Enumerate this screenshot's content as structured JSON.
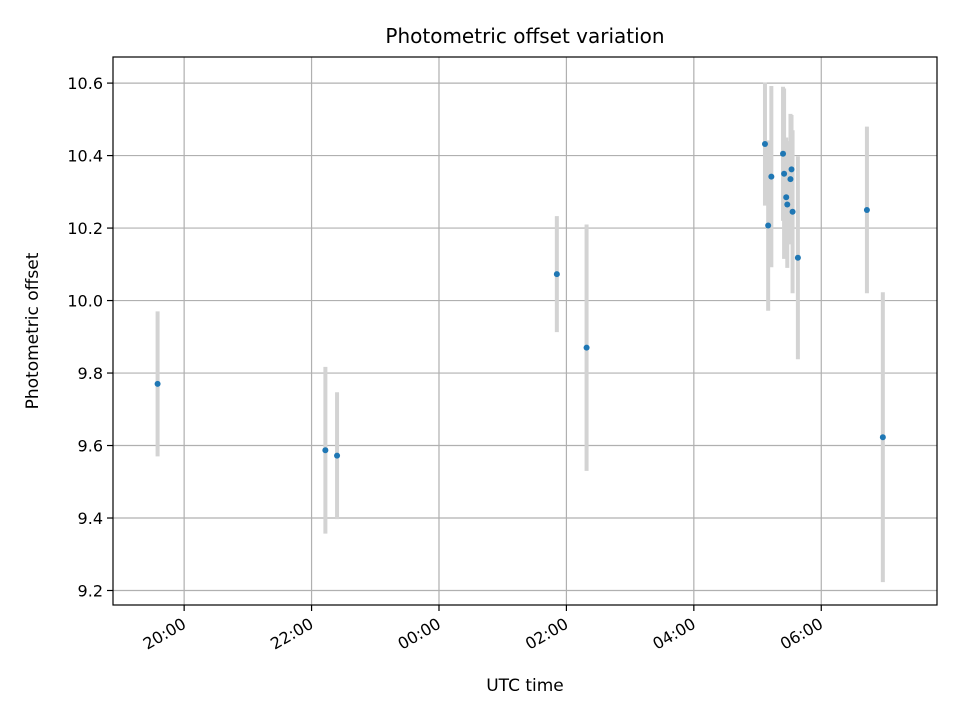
{
  "chart_data": {
    "type": "scatter",
    "title": "Photometric offset variation",
    "xlabel": "UTC time",
    "ylabel": "Photometric offset",
    "x_axis": "time",
    "xlim": [
      "2023-01-01T18:53",
      "2023-01-02T07:49"
    ],
    "ylim": [
      9.16,
      10.672
    ],
    "x_ticks": [
      {
        "t": "2023-01-01T20:00",
        "label": "20:00"
      },
      {
        "t": "2023-01-01T22:00",
        "label": "22:00"
      },
      {
        "t": "2023-01-02T00:00",
        "label": "00:00"
      },
      {
        "t": "2023-01-02T02:00",
        "label": "02:00"
      },
      {
        "t": "2023-01-02T04:00",
        "label": "04:00"
      },
      {
        "t": "2023-01-02T06:00",
        "label": "06:00"
      }
    ],
    "y_ticks": [
      {
        "v": 9.2,
        "label": "9.2"
      },
      {
        "v": 9.4,
        "label": "9.4"
      },
      {
        "v": 9.6,
        "label": "9.6"
      },
      {
        "v": 9.8,
        "label": "9.8"
      },
      {
        "v": 10.0,
        "label": "10.0"
      },
      {
        "v": 10.2,
        "label": "10.2"
      },
      {
        "v": 10.4,
        "label": "10.4"
      },
      {
        "v": 10.6,
        "label": "10.6"
      }
    ],
    "grid": true,
    "marker_color": "#1f77b4",
    "errorbar_color": "#d3d3d3",
    "points": [
      {
        "t": "2023-01-01T19:35",
        "y": 9.77,
        "err": 0.2
      },
      {
        "t": "2023-01-01T22:13",
        "y": 9.587,
        "err": 0.23
      },
      {
        "t": "2023-01-01T22:24",
        "y": 9.572,
        "err": 0.175
      },
      {
        "t": "2023-01-02T01:51",
        "y": 10.073,
        "err": 0.16
      },
      {
        "t": "2023-01-02T02:19",
        "y": 9.87,
        "err": 0.34
      },
      {
        "t": "2023-01-02T05:07",
        "y": 10.432,
        "err": 0.17
      },
      {
        "t": "2023-01-02T05:10",
        "y": 10.207,
        "err": 0.235
      },
      {
        "t": "2023-01-02T05:13",
        "y": 10.342,
        "err": 0.25
      },
      {
        "t": "2023-01-02T05:24",
        "y": 10.405,
        "err": 0.185
      },
      {
        "t": "2023-01-02T05:25",
        "y": 10.35,
        "err": 0.235
      },
      {
        "t": "2023-01-02T05:27",
        "y": 10.285,
        "err": 0.165
      },
      {
        "t": "2023-01-02T05:28",
        "y": 10.265,
        "err": 0.175
      },
      {
        "t": "2023-01-02T05:31",
        "y": 10.335,
        "err": 0.18
      },
      {
        "t": "2023-01-02T05:32",
        "y": 10.362,
        "err": 0.15
      },
      {
        "t": "2023-01-02T05:33",
        "y": 10.245,
        "err": 0.225
      },
      {
        "t": "2023-01-02T05:38",
        "y": 10.118,
        "err": 0.28
      },
      {
        "t": "2023-01-02T06:43",
        "y": 10.25,
        "err": 0.23
      },
      {
        "t": "2023-01-02T06:58",
        "y": 9.623,
        "err": 0.4
      }
    ]
  }
}
